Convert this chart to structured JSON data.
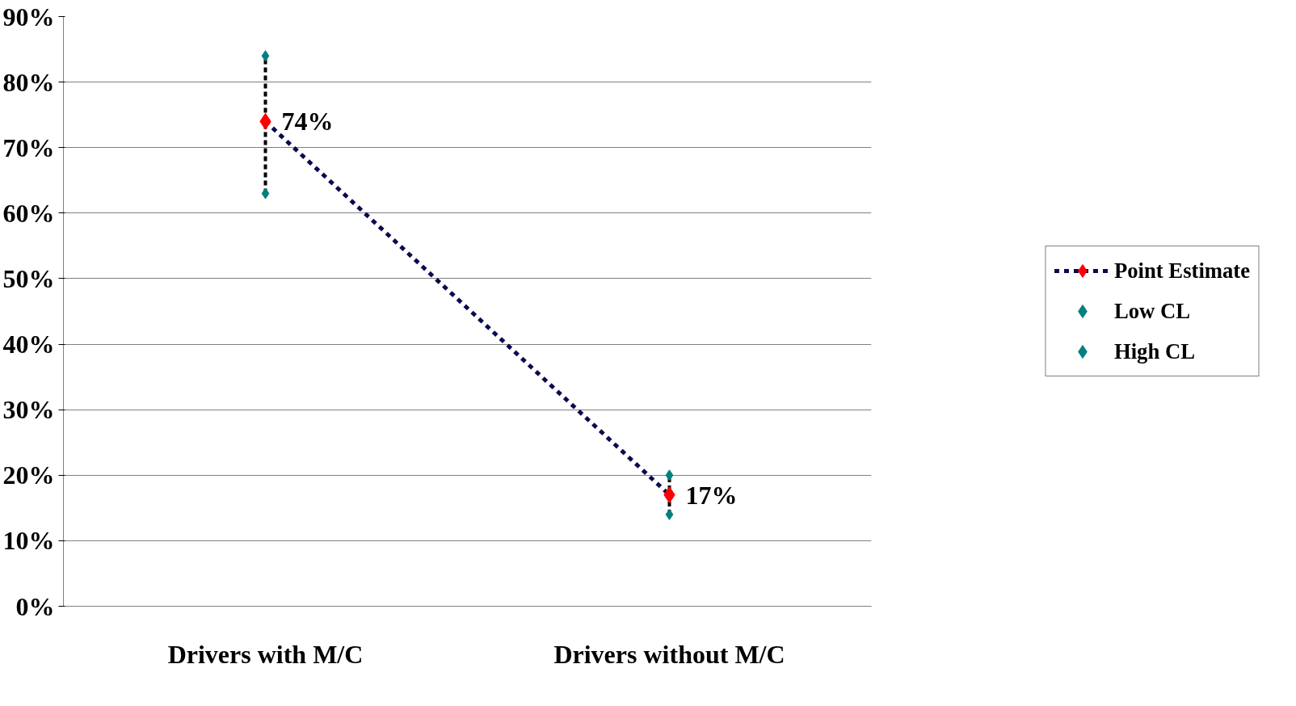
{
  "chart_data": {
    "type": "line",
    "categories": [
      "Drivers with M/C",
      "Drivers without M/C"
    ],
    "series": [
      {
        "name": "Point Estimate",
        "color": "#0a0a50",
        "colors": [
          "#ff0000",
          "#ff0000"
        ],
        "marker": "diamond",
        "line_style": "dashed",
        "values": [
          74,
          17
        ],
        "value_labels": [
          "74%",
          "17%"
        ]
      },
      {
        "name": "Low CL",
        "type": "scatter",
        "color": "#008080",
        "marker": "diamond",
        "values": [
          63,
          14
        ]
      },
      {
        "name": "High CL",
        "type": "scatter",
        "color": "#008080",
        "marker": "diamond",
        "values": [
          84,
          20
        ]
      }
    ],
    "ylim": [
      0,
      90
    ],
    "yticks": [
      {
        "value": 0,
        "label": "0%"
      },
      {
        "value": 10,
        "label": "10%"
      },
      {
        "value": 20,
        "label": "20%"
      },
      {
        "value": 30,
        "label": "30%"
      },
      {
        "value": 40,
        "label": "40%"
      },
      {
        "value": 50,
        "label": "50%"
      },
      {
        "value": 60,
        "label": "60%"
      },
      {
        "value": 70,
        "label": "70%"
      },
      {
        "value": 80,
        "label": "80%"
      },
      {
        "value": 90,
        "label": "90%"
      }
    ],
    "grid": "y",
    "legend": "right"
  }
}
